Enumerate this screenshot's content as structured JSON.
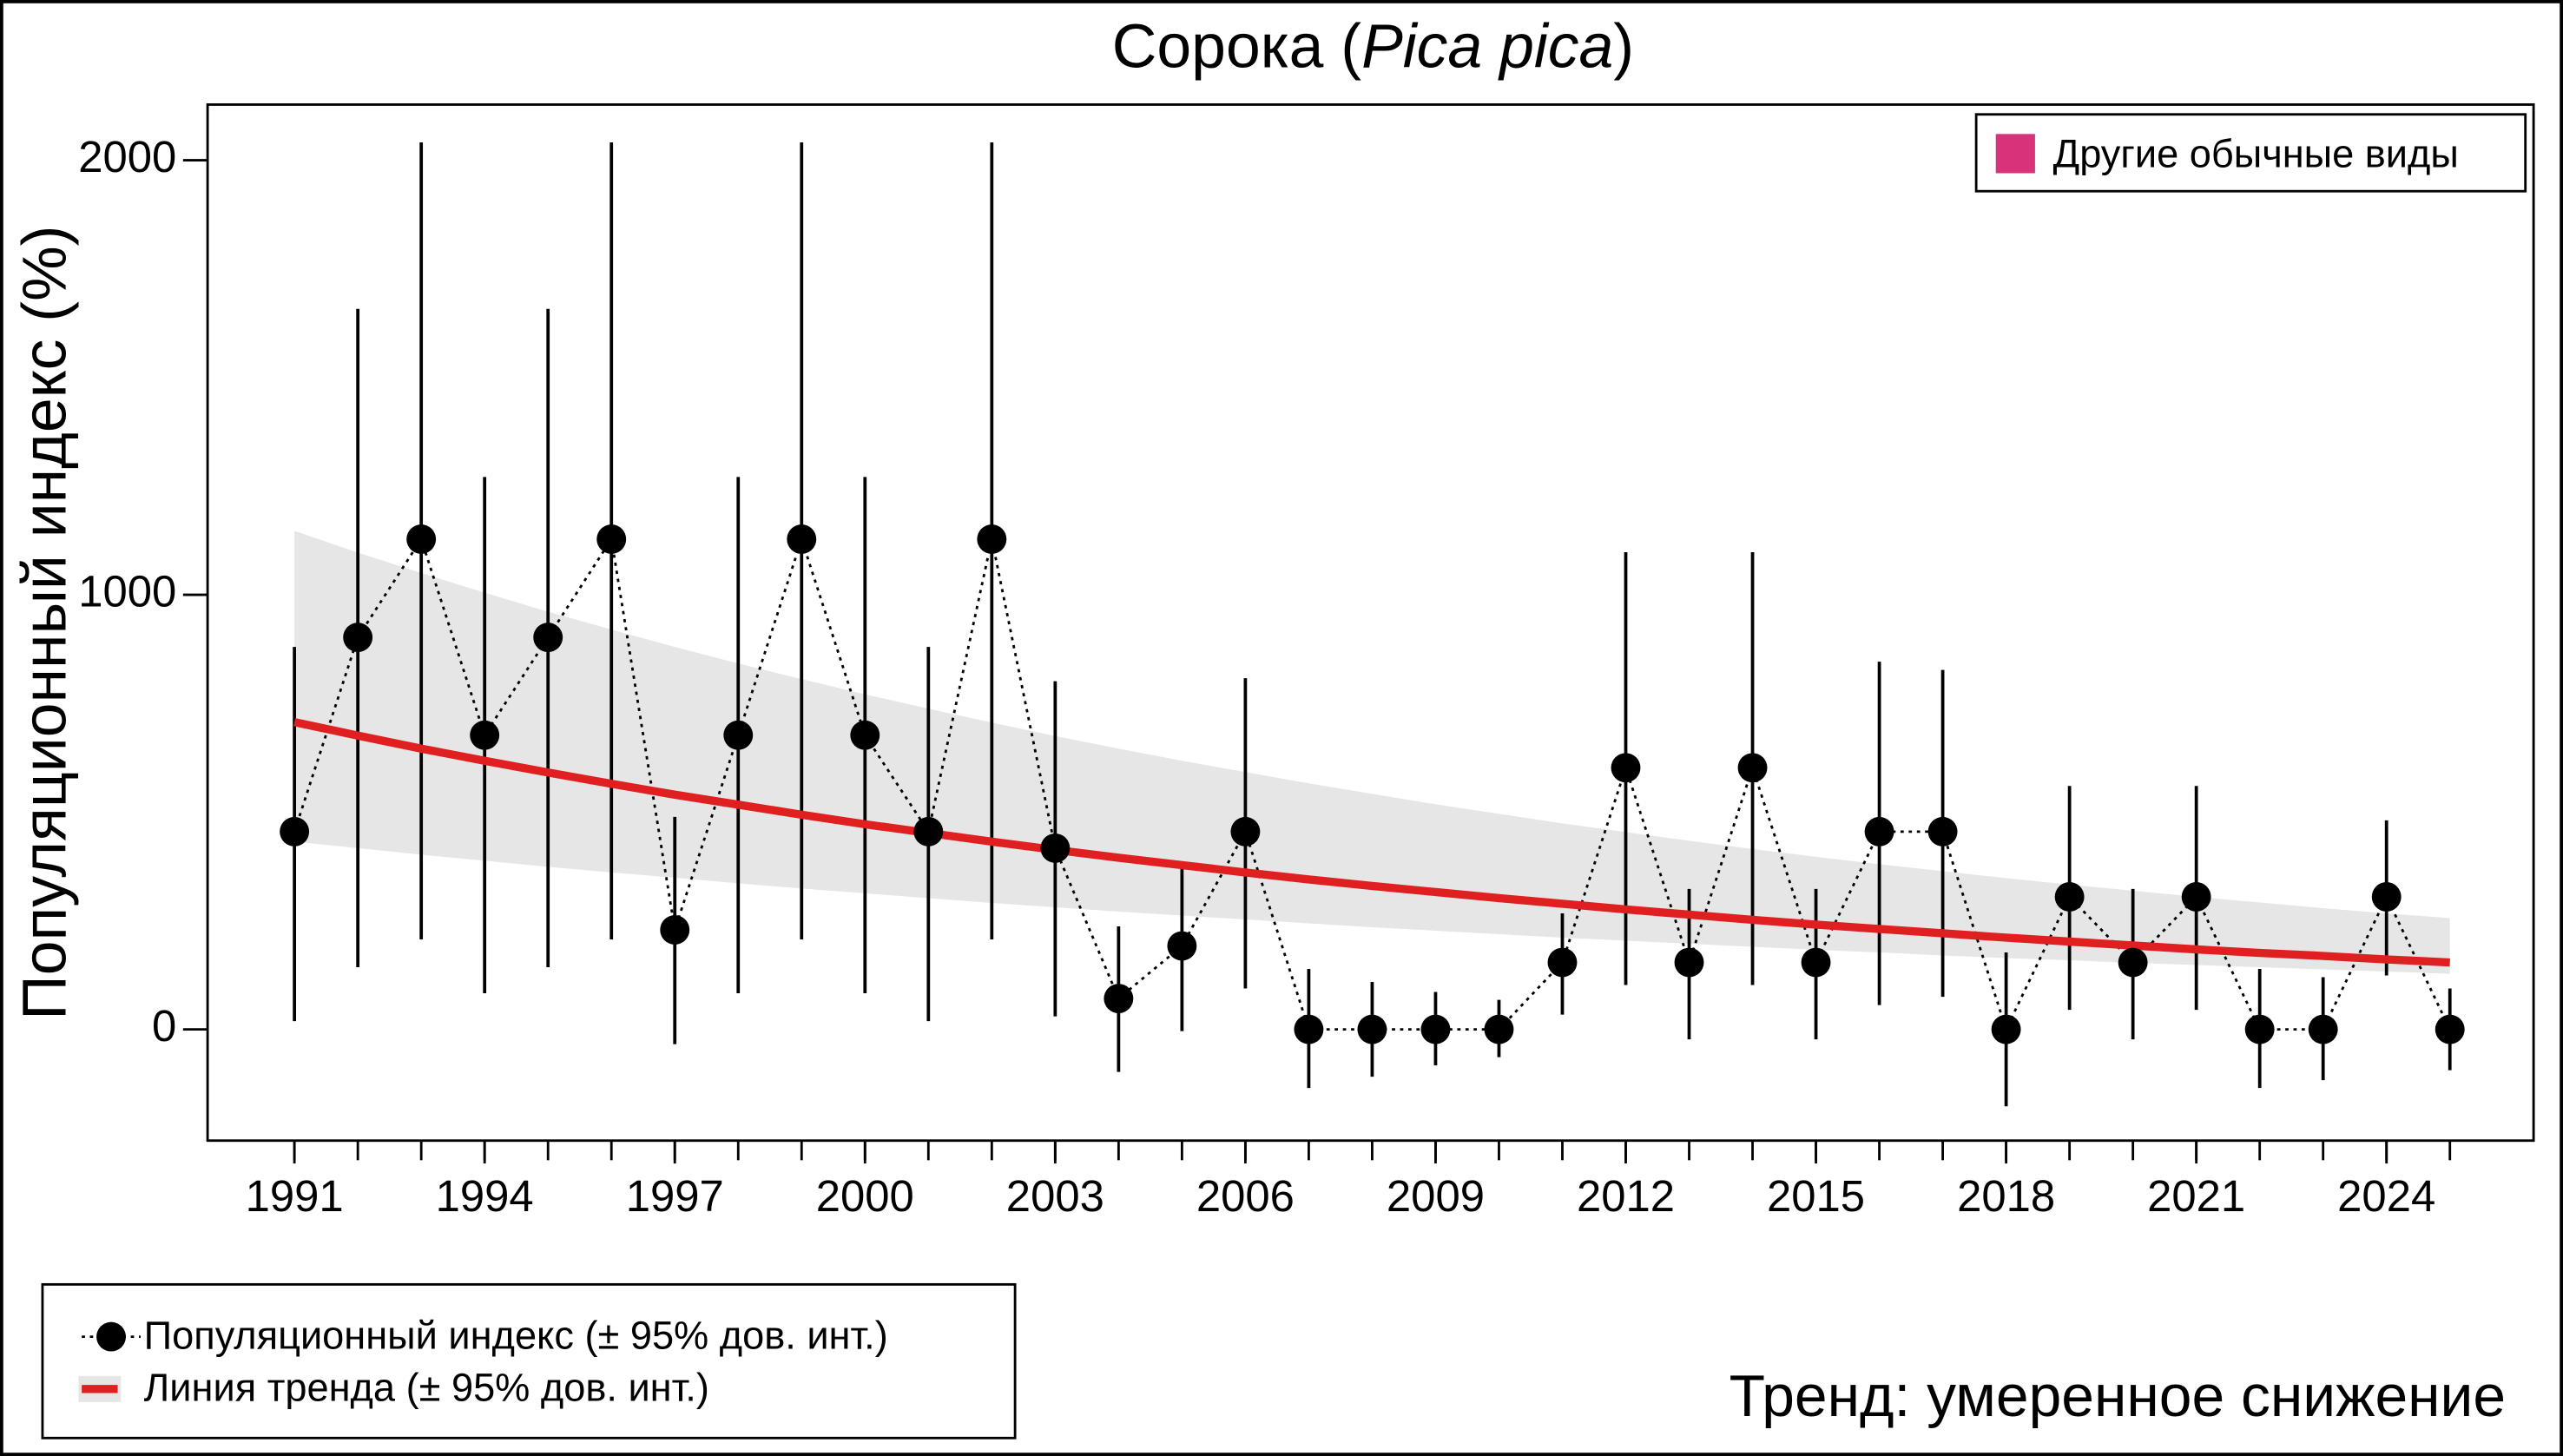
{
  "chart_data": {
    "type": "line",
    "title": {
      "prefix": "Сорока (",
      "italic": "Pica pica",
      "suffix": ")"
    },
    "y_label": "Популяционный индекс (%)",
    "x": [
      1991,
      1992,
      1993,
      1994,
      1995,
      1996,
      1997,
      1998,
      1999,
      2000,
      2001,
      2002,
      2003,
      2004,
      2005,
      2006,
      2007,
      2008,
      2009,
      2010,
      2011,
      2012,
      2013,
      2014,
      2015,
      2016,
      2017,
      2018,
      2019,
      2020,
      2021,
      2022,
      2023,
      2024,
      2025
    ],
    "xlim": [
      1989.63,
      2026.32
    ],
    "xticks": [
      1991,
      1994,
      1997,
      2000,
      2003,
      2006,
      2009,
      2012,
      2015,
      2018,
      2021,
      2024
    ],
    "ylim": [
      -256,
      2128
    ],
    "yticks": [
      0,
      1000,
      2000
    ],
    "series": [
      {
        "name": "Популяционный индекс (± 95% дов. инт.)",
        "color": "#000000",
        "values": [
          455,
          902,
          1128,
          677,
          902,
          1128,
          229,
          677,
          1128,
          677,
          455,
          1128,
          417,
          71,
          192,
          455,
          0,
          0,
          0,
          0,
          154,
          602,
          154,
          602,
          154,
          455,
          455,
          0,
          305,
          154,
          305,
          0,
          0,
          305,
          0
        ],
        "ci_lower": [
          19,
          143,
          207,
          83,
          143,
          207,
          -34,
          83,
          207,
          83,
          19,
          207,
          30,
          -98,
          -4,
          94,
          -135,
          -109,
          -83,
          -64,
          34,
          102,
          -23,
          102,
          -23,
          56,
          75,
          -177,
          45,
          -23,
          45,
          -135,
          -117,
          124,
          -94
        ],
        "ci_upper": [
          880,
          1658,
          2041,
          1271,
          1658,
          2041,
          489,
          1271,
          2041,
          1271,
          880,
          2041,
          801,
          237,
          383,
          808,
          139,
          109,
          86,
          68,
          267,
          1098,
          323,
          1098,
          323,
          846,
          827,
          177,
          560,
          323,
          560,
          139,
          120,
          481,
          94
        ]
      },
      {
        "name": "Линия тренда (± 95% дов. инт.)",
        "color": "#e02020",
        "band_color": "#e6e6e6",
        "values": [
          707,
          676,
          646,
          618,
          591,
          565,
          540,
          517,
          494,
          472,
          452,
          432,
          413,
          395,
          378,
          361,
          345,
          330,
          316,
          302,
          289,
          276,
          264,
          252,
          241,
          231,
          221,
          211,
          202,
          193,
          184,
          176,
          169,
          161,
          154
        ],
        "band_lower": [
          432,
          417,
          402,
          388,
          374,
          361,
          349,
          336,
          324,
          313,
          302,
          291,
          281,
          271,
          262,
          253,
          244,
          235,
          227,
          219,
          211,
          204,
          197,
          190,
          183,
          177,
          170,
          164,
          159,
          153,
          148,
          143,
          138,
          133,
          128
        ],
        "band_upper": [
          1147,
          1097,
          1050,
          1005,
          961,
          920,
          880,
          842,
          806,
          771,
          738,
          706,
          675,
          646,
          618,
          592,
          566,
          542,
          518,
          496,
          474,
          454,
          434,
          415,
          397,
          380,
          364,
          348,
          333,
          319,
          305,
          292,
          279,
          267,
          256
        ]
      }
    ],
    "legend_extra": {
      "label": "Другие обычные виды",
      "color": "#d6337a"
    },
    "annotation": {
      "text": "Тренд: умеренное снижение",
      "color": "#cc0000"
    }
  }
}
